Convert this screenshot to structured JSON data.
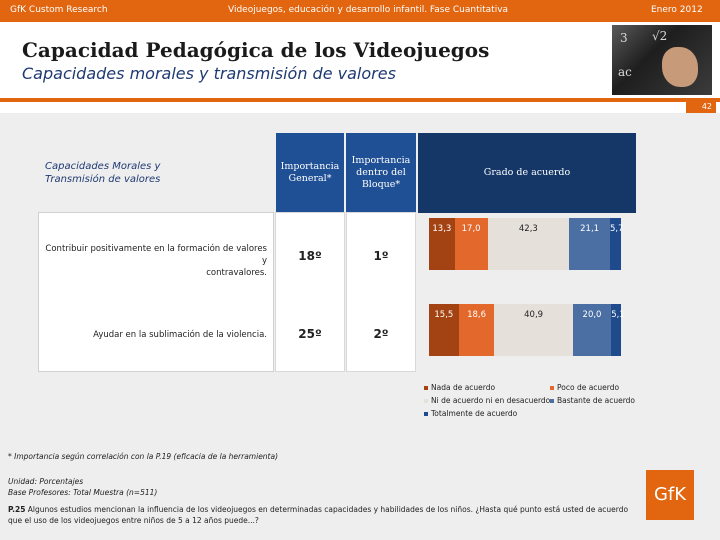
{
  "topbar": {
    "left": "GfK Custom Research",
    "center": "Videojuegos, educación y desarrollo infantil. Fase Cuantitativa",
    "right": "Enero 2012"
  },
  "title": "Capacidad Pedagógica de los Videojuegos",
  "subtitle": "Capacidades morales y transmisión de valores",
  "page_number": "42",
  "table": {
    "left_header_line1": "Capacidades Morales y",
    "left_header_line2": "Transmisión de valores",
    "col1_header_line1": "Importancia",
    "col1_header_line2": "General*",
    "col2_header_line1": "Importancia",
    "col2_header_line2": "dentro del",
    "col2_header_line3": "Bloque*",
    "col3_header": "Grado de acuerdo",
    "rows": [
      {
        "label_line1": "Contribuir positivamente en la formación de valores y",
        "label_line2": "contravalores.",
        "general": "18º",
        "bloque": "1º",
        "segments": [
          13.3,
          17.0,
          42.3,
          21.1,
          5.7
        ],
        "segment_labels": [
          "13,3",
          "17,0",
          "42,3",
          "21,1",
          "5,7"
        ]
      },
      {
        "label_line1": "Ayudar en la sublimación de la violencia.",
        "label_line2": "",
        "general": "25º",
        "bloque": "2º",
        "segments": [
          15.5,
          18.6,
          40.9,
          20.0,
          5.1
        ],
        "segment_labels": [
          "15,5",
          "18,6",
          "40,9",
          "20,0",
          "5,1"
        ]
      }
    ]
  },
  "legend": {
    "items": [
      {
        "label": "Nada de acuerdo",
        "color": "#a34212"
      },
      {
        "label": "Poco de acuerdo",
        "color": "#e2682c"
      },
      {
        "label": "Ni de acuerdo ni en desacuerdo",
        "color": "#e6e0db"
      },
      {
        "label": "Bastante de acuerdo",
        "color": "#4b6ea3"
      },
      {
        "label": "Totalmente de acuerdo",
        "color": "#1f4b8c"
      }
    ]
  },
  "footnotes": {
    "importance": "* Importancia según correlación con la P.19 (eficacia de la herramienta)",
    "unit": "Unidad: Porcentajes",
    "base": "Base Profesores: Total Muestra (n=511)",
    "question_bold": "P.25",
    "question_text": " Algunos estudios mencionan la influencia de los videojuegos en determinadas capacidades y habilidades de los niños. ¿Hasta qué punto está usted de acuerdo que el uso de los videojuegos entre niños de 5 a 12 años puede...?"
  },
  "logo": "GfK",
  "photo": {
    "chalk_1": "3",
    "chalk_2": "ac",
    "chalk_3": "√2"
  }
}
